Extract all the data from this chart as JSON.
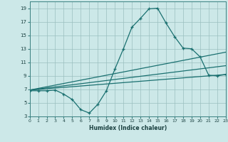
{
  "xlabel": "Humidex (Indice chaleur)",
  "bg_color": "#cce8e8",
  "line_color": "#1a7070",
  "grid_color": "#9abfbf",
  "xmin": 0,
  "xmax": 23,
  "ymin": 3,
  "ymax": 20,
  "yticks": [
    3,
    5,
    7,
    9,
    11,
    13,
    15,
    17,
    19
  ],
  "xticks": [
    0,
    1,
    2,
    3,
    4,
    5,
    6,
    7,
    8,
    9,
    10,
    11,
    12,
    13,
    14,
    15,
    16,
    17,
    18,
    19,
    20,
    21,
    22,
    23
  ],
  "curve1_x": [
    0,
    1,
    2,
    3,
    4,
    5,
    6,
    7,
    8,
    9,
    10,
    11,
    12,
    13,
    14,
    15,
    16,
    17,
    18,
    19,
    20,
    21,
    22,
    23
  ],
  "curve1_y": [
    6.8,
    6.8,
    6.8,
    6.9,
    6.3,
    5.5,
    4.0,
    3.5,
    4.8,
    6.8,
    10.0,
    13.0,
    16.2,
    17.5,
    18.9,
    19.0,
    16.8,
    14.8,
    13.1,
    13.0,
    11.8,
    9.1,
    9.0,
    9.2
  ],
  "line2_x": [
    0,
    23
  ],
  "line2_y": [
    6.9,
    9.2
  ],
  "line3_x": [
    0,
    23
  ],
  "line3_y": [
    6.9,
    10.5
  ],
  "line4_x": [
    0,
    23
  ],
  "line4_y": [
    6.9,
    12.5
  ]
}
